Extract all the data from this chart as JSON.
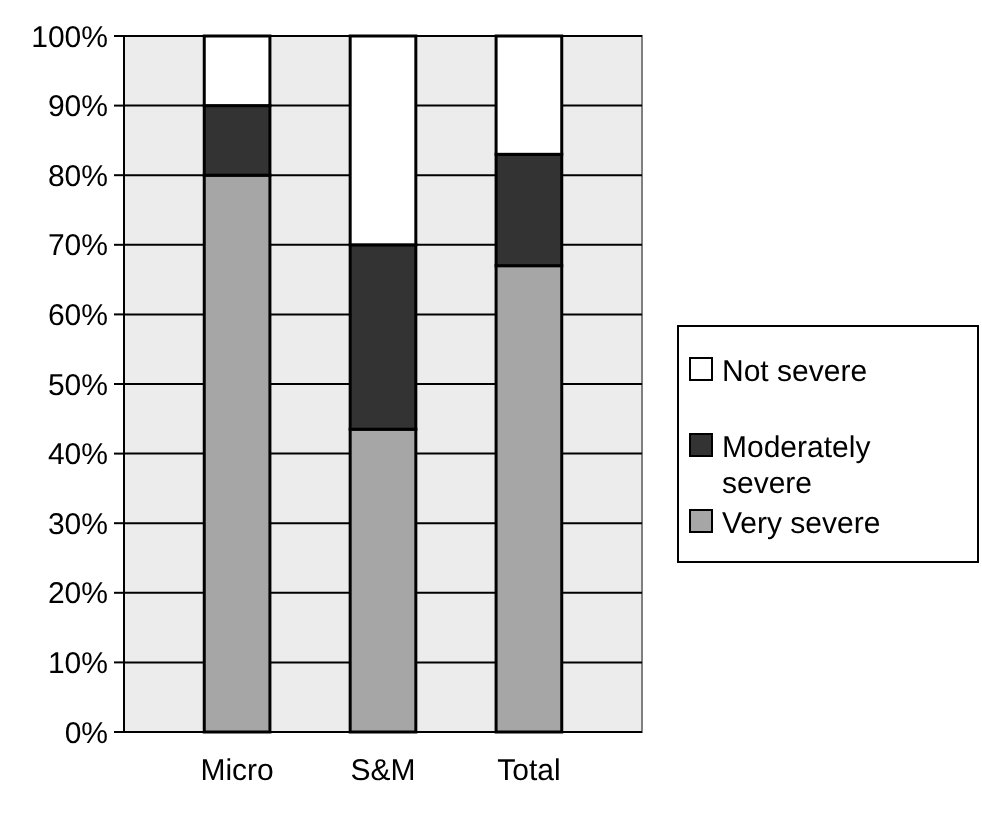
{
  "chart_data": {
    "type": "bar",
    "stacked": true,
    "categories": [
      "Micro",
      "S&M",
      "Total"
    ],
    "series": [
      {
        "name": "Very severe",
        "color": "#a6a6a6",
        "values": [
          80,
          43.5,
          67
        ]
      },
      {
        "name": "Moderately severe",
        "color": "#333333",
        "values": [
          10,
          26.5,
          16
        ]
      },
      {
        "name": "Not severe",
        "color": "#ffffff",
        "values": [
          10,
          30,
          17
        ]
      }
    ],
    "ylim": [
      0,
      100
    ],
    "yticks": [
      {
        "value": 0,
        "label": "0%"
      },
      {
        "value": 10,
        "label": "10%"
      },
      {
        "value": 20,
        "label": "20%"
      },
      {
        "value": 30,
        "label": "30%"
      },
      {
        "value": 40,
        "label": "40%"
      },
      {
        "value": 50,
        "label": "50%"
      },
      {
        "value": 60,
        "label": "60%"
      },
      {
        "value": 70,
        "label": "70%"
      },
      {
        "value": 80,
        "label": "80%"
      },
      {
        "value": 90,
        "label": "90%"
      },
      {
        "value": 100,
        "label": "100%"
      }
    ],
    "grid": "y",
    "legend": "right"
  }
}
